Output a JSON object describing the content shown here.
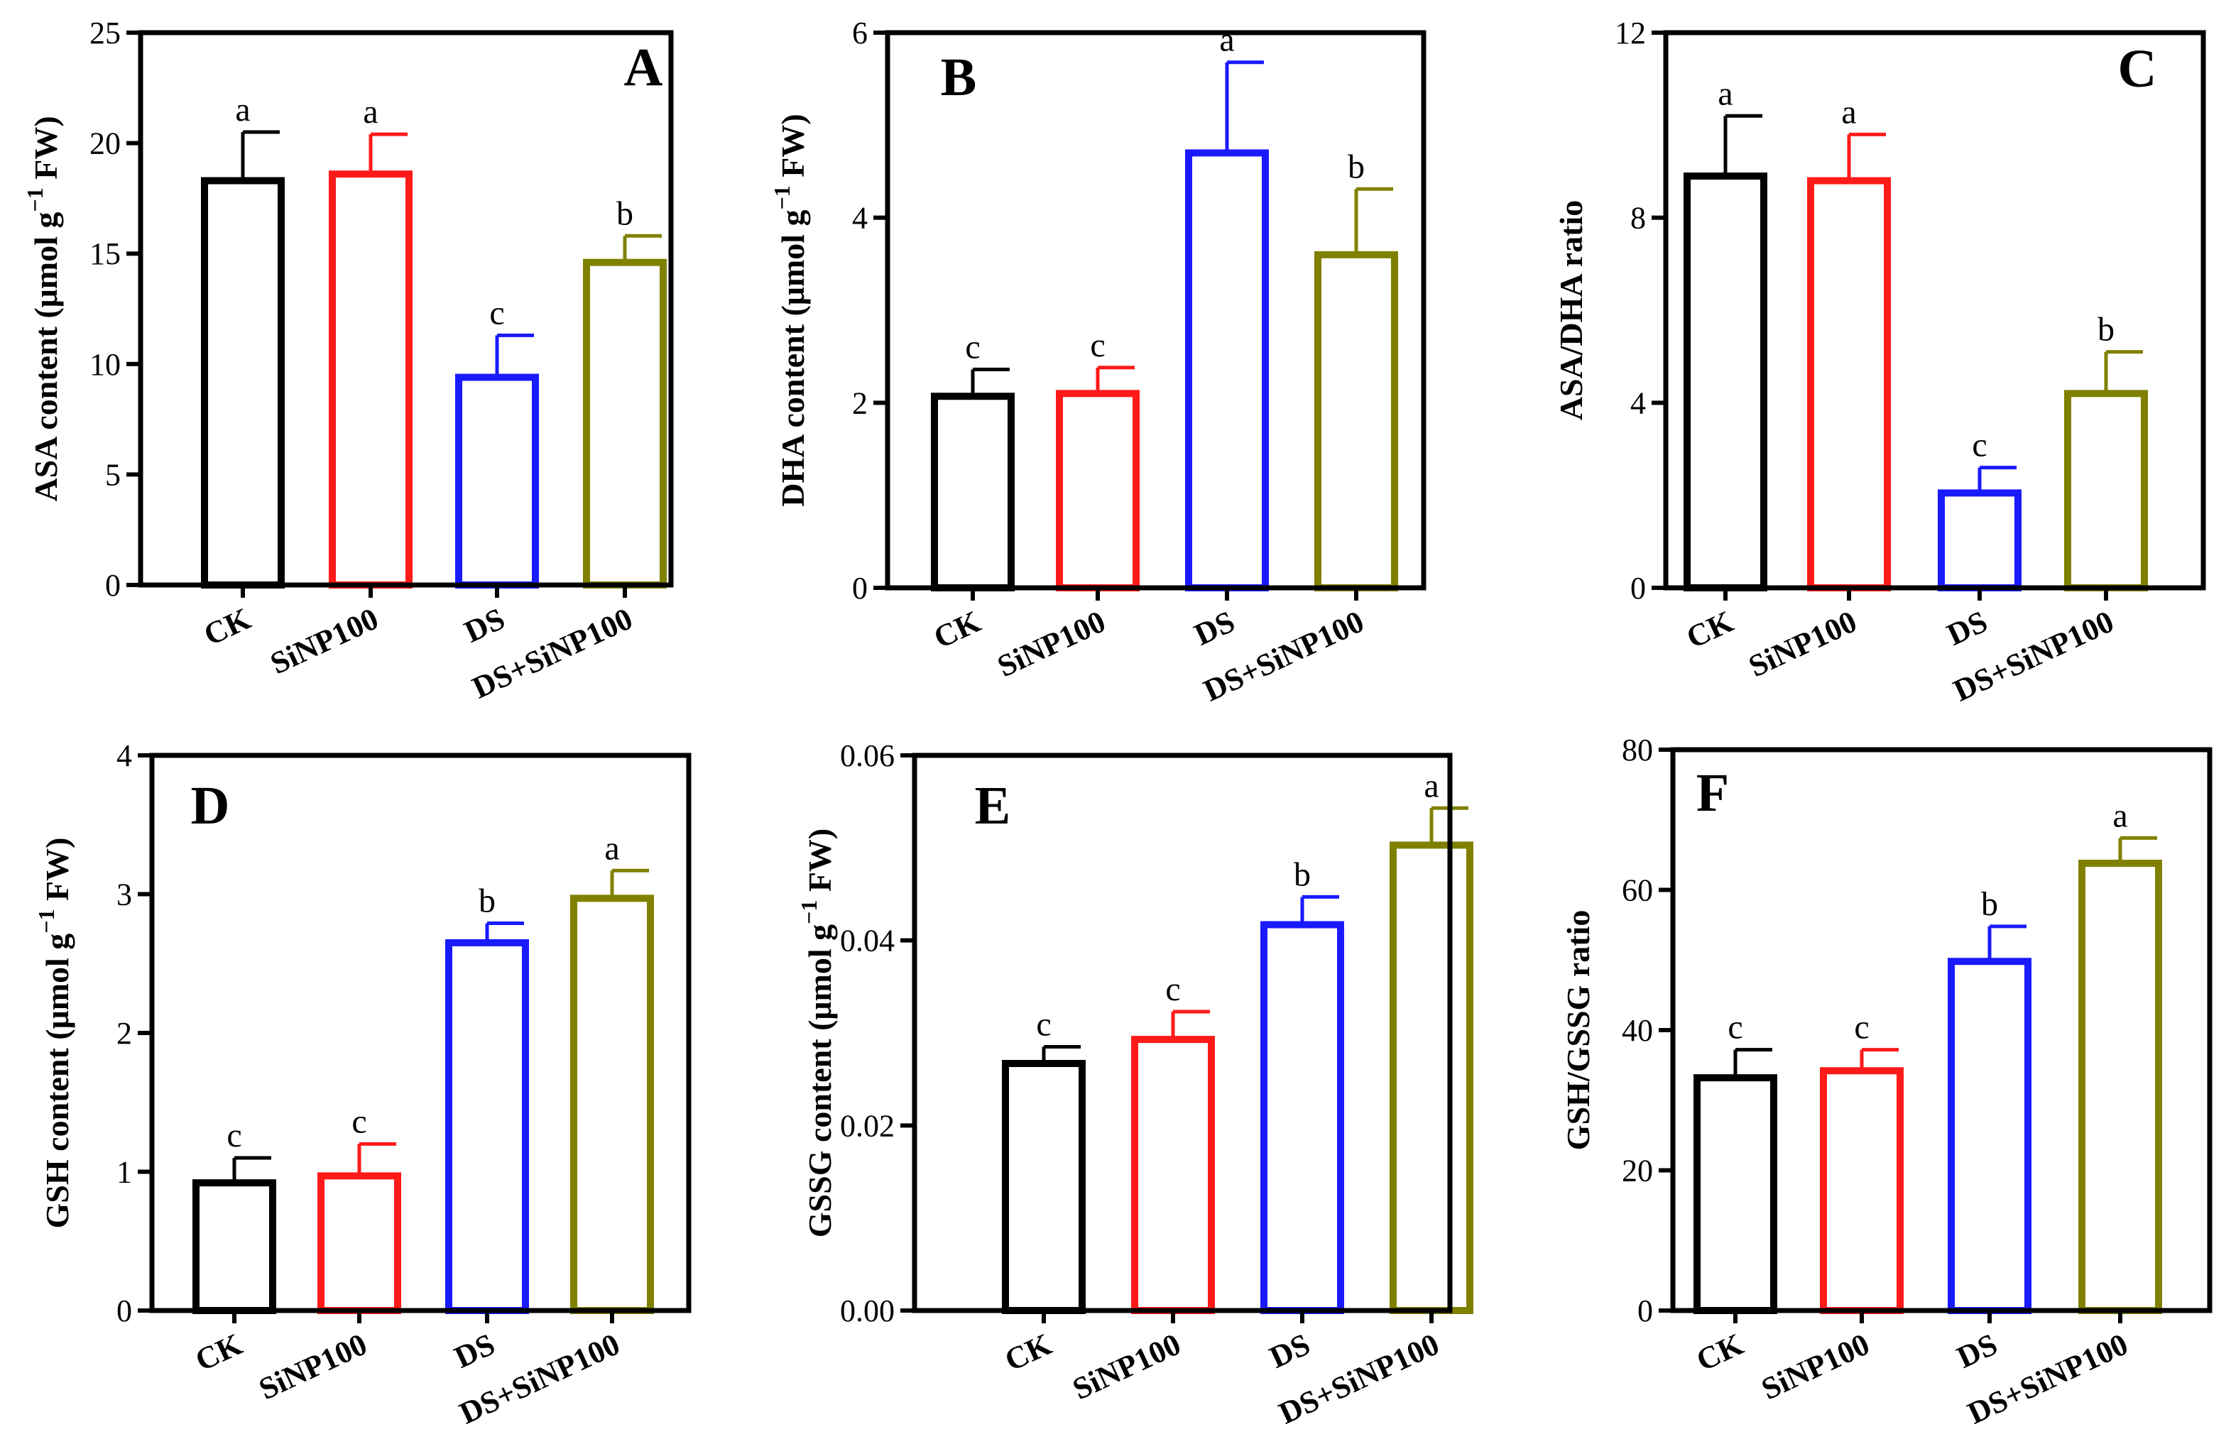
{
  "figure": {
    "categories": [
      "CK",
      "SiNP100",
      "DS",
      "DS+SiNP100"
    ],
    "series_colors": [
      "#000000",
      "#ff1a1a",
      "#1a1aff",
      "#808000"
    ]
  },
  "chart_data": [
    {
      "type": "bar",
      "panel": "A",
      "title": "",
      "xlabel": "",
      "ylabel": "ASA content (μmol g⁻¹ FW)",
      "ylabel_parts": [
        "ASA content (μmol g",
        "−1",
        " FW)"
      ],
      "ylim": [
        0,
        25
      ],
      "yticks": [
        "0",
        "5",
        "10",
        "15",
        "20",
        "25"
      ],
      "categories": [
        "CK",
        "SiNP100",
        "DS",
        "DS+SiNP100"
      ],
      "values": [
        18.3,
        18.6,
        9.4,
        14.6
      ],
      "errors": [
        2.2,
        1.8,
        1.9,
        1.2
      ],
      "significance": [
        "a",
        "a",
        "c",
        "b"
      ]
    },
    {
      "type": "bar",
      "panel": "B",
      "title": "",
      "xlabel": "",
      "ylabel": "DHA content (μmol g⁻¹ FW)",
      "ylabel_parts": [
        "DHA content (μmol g",
        "−1",
        " FW)"
      ],
      "ylim": [
        0,
        6
      ],
      "yticks": [
        "0",
        "2",
        "4",
        "6"
      ],
      "categories": [
        "CK",
        "SiNP100",
        "DS",
        "DS+SiNP100"
      ],
      "values": [
        2.07,
        2.1,
        4.7,
        3.6
      ],
      "errors": [
        0.29,
        0.28,
        0.98,
        0.71
      ],
      "significance": [
        "c",
        "c",
        "a",
        "b"
      ]
    },
    {
      "type": "bar",
      "panel": "C",
      "title": "",
      "xlabel": "",
      "ylabel": "ASA/DHA ratio",
      "ylabel_parts": [
        "ASA/DHA ratio",
        "",
        ""
      ],
      "ylim": [
        0,
        12
      ],
      "yticks": [
        "0",
        "4",
        "8",
        "12"
      ],
      "categories": [
        "CK",
        "SiNP100",
        "DS",
        "DS+SiNP100"
      ],
      "values": [
        8.9,
        8.8,
        2.05,
        4.2
      ],
      "errors": [
        1.3,
        1.0,
        0.55,
        0.9
      ],
      "significance": [
        "a",
        "a",
        "c",
        "b"
      ]
    },
    {
      "type": "bar",
      "panel": "D",
      "title": "",
      "xlabel": "",
      "ylabel": "GSH content (μmol g⁻¹ FW)",
      "ylabel_parts": [
        "GSH content (μmol g",
        "−1",
        " FW)"
      ],
      "ylim": [
        0,
        4
      ],
      "yticks": [
        "0",
        "1",
        "2",
        "3",
        "4"
      ],
      "categories": [
        "CK",
        "SiNP100",
        "DS",
        "DS+SiNP100"
      ],
      "values": [
        0.92,
        0.97,
        2.65,
        2.97
      ],
      "errors": [
        0.18,
        0.23,
        0.14,
        0.2
      ],
      "significance": [
        "c",
        "c",
        "b",
        "a"
      ]
    },
    {
      "type": "bar",
      "panel": "E",
      "title": "",
      "xlabel": "",
      "ylabel": "GSSG content (μmol g⁻¹ FW)",
      "ylabel_parts": [
        "GSSG content (μmol g",
        "−1",
        " FW)"
      ],
      "ylim": [
        0,
        0.06
      ],
      "yticks": [
        "0.00",
        "0.02",
        "0.04",
        "0.06"
      ],
      "categories": [
        "CK",
        "SiNP100",
        "DS",
        "DS+SiNP100"
      ],
      "values": [
        0.0267,
        0.0293,
        0.0417,
        0.0503
      ],
      "errors": [
        0.0018,
        0.003,
        0.003,
        0.004
      ],
      "significance": [
        "c",
        "c",
        "b",
        "a"
      ]
    },
    {
      "type": "bar",
      "panel": "F",
      "title": "",
      "xlabel": "",
      "ylabel": "GSH/GSSG  ratio",
      "ylabel_parts": [
        "GSH/GSSG  ratio",
        "",
        ""
      ],
      "ylim": [
        0,
        80
      ],
      "yticks": [
        "0",
        "20",
        "40",
        "60",
        "80"
      ],
      "categories": [
        "CK",
        "SiNP100",
        "DS",
        "DS+SiNP100"
      ],
      "values": [
        33.2,
        34.2,
        49.8,
        63.8
      ],
      "errors": [
        4.0,
        3.0,
        5.0,
        3.6
      ],
      "significance": [
        "c",
        "c",
        "b",
        "a"
      ]
    }
  ]
}
